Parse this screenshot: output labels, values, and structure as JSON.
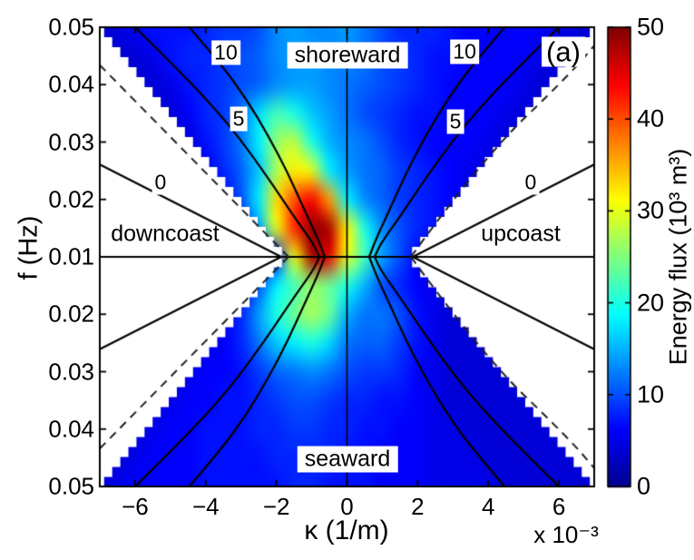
{
  "panel_label": "(a)",
  "axes": {
    "x": {
      "label": "κ (1/m)",
      "multiplier": "x 10⁻³",
      "ticks": [
        {
          "label": "−6",
          "k": -6
        },
        {
          "label": "−4",
          "k": -4
        },
        {
          "label": "−2",
          "k": -2
        },
        {
          "label": "0",
          "k": 0
        },
        {
          "label": "2",
          "k": 2
        },
        {
          "label": "4",
          "k": 4
        },
        {
          "label": "6",
          "k": 6
        }
      ],
      "range": [
        -7,
        7
      ]
    },
    "y": {
      "label": "f (Hz)",
      "ticks": [
        {
          "label": "0.05",
          "f": 0.05
        },
        {
          "label": "0.04",
          "f": 0.04
        },
        {
          "label": "0.03",
          "f": 0.03
        },
        {
          "label": "0.02",
          "f": 0.02
        },
        {
          "label": "0.01",
          "f": 0.01
        },
        {
          "label": "0.02",
          "f": -0.02
        },
        {
          "label": "0.03",
          "f": -0.03
        },
        {
          "label": "0.04",
          "f": -0.04
        },
        {
          "label": "0.05",
          "f": -0.05
        }
      ],
      "range_each_half": [
        0.01,
        0.05
      ]
    }
  },
  "colorbar": {
    "label": "Energy flux (10³ m³)",
    "ticks": [
      {
        "label": "0",
        "v": 0
      },
      {
        "label": "10",
        "v": 10
      },
      {
        "label": "20",
        "v": 20
      },
      {
        "label": "30",
        "v": 30
      },
      {
        "label": "40",
        "v": 40
      },
      {
        "label": "50",
        "v": 50
      }
    ],
    "range": [
      0,
      50
    ],
    "colormap": "jet",
    "colormap_anchors": [
      [
        0,
        "#00008F"
      ],
      [
        0.125,
        "#0000FF"
      ],
      [
        0.375,
        "#00FFFF"
      ],
      [
        0.625,
        "#FFFF00"
      ],
      [
        0.875,
        "#FF0000"
      ],
      [
        1,
        "#800000"
      ]
    ]
  },
  "annotations": {
    "shoreward": "shoreward",
    "seaward": "seaward",
    "downcoast": "downcoast",
    "upcoast": "upcoast"
  },
  "chart_data": {
    "type": "heatmap",
    "title": "",
    "xlabel": "κ (1/m) x 10⁻³",
    "ylabel": "f (Hz)",
    "value_label": "Energy flux (10³ m³)",
    "value_range": [
      0,
      50
    ],
    "x_columns_1e3": [
      -7,
      -6.5,
      -6,
      -5.5,
      -5,
      -4.5,
      -4,
      -3.5,
      -3,
      -2.5,
      -2,
      -1.5,
      -1,
      -0.5,
      0,
      0.5,
      1,
      1.5,
      2,
      2.5,
      3,
      3.5,
      4,
      4.5,
      5,
      5.5,
      6,
      6.5,
      7
    ],
    "row_f_hz": [
      0.05,
      0.045,
      0.04,
      0.035,
      0.03,
      0.025,
      0.02,
      0.015,
      0.01,
      -0.015,
      -0.02,
      -0.025,
      -0.03,
      -0.035,
      -0.04,
      -0.045,
      -0.05
    ],
    "grid": [
      [
        4,
        4,
        6,
        7,
        7,
        7,
        8,
        9,
        9,
        10,
        13,
        14,
        13,
        13,
        14,
        12,
        10,
        8,
        8,
        8,
        7,
        6,
        6,
        6,
        6,
        6,
        5,
        4,
        4
      ],
      [
        4,
        4,
        4,
        5,
        7,
        8,
        8,
        9,
        10,
        11,
        13,
        14,
        14,
        13,
        13,
        12,
        10,
        9,
        8,
        7,
        7,
        6,
        6,
        6,
        6,
        5,
        4,
        4,
        4
      ],
      [
        4,
        4,
        4,
        4,
        5,
        7,
        8,
        9,
        10,
        11,
        13,
        14,
        14,
        13,
        12,
        11,
        10,
        9,
        8,
        7,
        6,
        6,
        6,
        6,
        5,
        4,
        4,
        4,
        4
      ],
      [
        4,
        4,
        4,
        4,
        4,
        6,
        8,
        9,
        12,
        17,
        22,
        20,
        16,
        14,
        12,
        10,
        9,
        8,
        7,
        7,
        6,
        6,
        6,
        5,
        4,
        4,
        4,
        4,
        4
      ],
      [
        4,
        4,
        4,
        4,
        4,
        4,
        7,
        9,
        12,
        18,
        26,
        28,
        20,
        15,
        13,
        12,
        10,
        8,
        7,
        6,
        6,
        6,
        5,
        4,
        4,
        4,
        4,
        4,
        4
      ],
      [
        4,
        4,
        4,
        4,
        4,
        4,
        5,
        8,
        11,
        16,
        27,
        32,
        30,
        18,
        14,
        12,
        11,
        9,
        8,
        7,
        6,
        5,
        5,
        4,
        4,
        4,
        4,
        4,
        4
      ],
      [
        4,
        4,
        4,
        4,
        4,
        4,
        4,
        6,
        10,
        18,
        33,
        40,
        44,
        36,
        18,
        13,
        11,
        9,
        8,
        7,
        6,
        5,
        4,
        4,
        4,
        4,
        4,
        4,
        4
      ],
      [
        4,
        4,
        4,
        4,
        4,
        4,
        4,
        4,
        6,
        14,
        30,
        42,
        49,
        48,
        32,
        20,
        13,
        10,
        8,
        7,
        6,
        5,
        4,
        4,
        4,
        4,
        4,
        4,
        4
      ],
      [
        4,
        4,
        4,
        4,
        4,
        4,
        4,
        4,
        4,
        4,
        8,
        30,
        48,
        45,
        30,
        22,
        14,
        10,
        6,
        4,
        4,
        4,
        4,
        4,
        4,
        4,
        4,
        4,
        4
      ],
      [
        4,
        4,
        4,
        4,
        4,
        4,
        4,
        4,
        5,
        10,
        18,
        22,
        26,
        24,
        20,
        15,
        10,
        8,
        6,
        5,
        4,
        4,
        4,
        4,
        4,
        4,
        4,
        4,
        4
      ],
      [
        4,
        4,
        4,
        4,
        4,
        4,
        4,
        5,
        8,
        14,
        20,
        24,
        27,
        24,
        15,
        12,
        12,
        10,
        7,
        5,
        4,
        4,
        4,
        4,
        4,
        4,
        4,
        4,
        4
      ],
      [
        4,
        4,
        4,
        4,
        4,
        4,
        5,
        6,
        8,
        12,
        16,
        18,
        20,
        17,
        12,
        11,
        11,
        9,
        7,
        5,
        4,
        4,
        4,
        4,
        4,
        4,
        4,
        4,
        4
      ],
      [
        4,
        4,
        4,
        4,
        4,
        5,
        6,
        6,
        7,
        9,
        11,
        12,
        13,
        12,
        10,
        9,
        9,
        8,
        6,
        5,
        4,
        4,
        4,
        4,
        4,
        4,
        4,
        4,
        4
      ],
      [
        4,
        4,
        4,
        4,
        5,
        6,
        6,
        7,
        7,
        8,
        9,
        10,
        10,
        9,
        8,
        8,
        7,
        7,
        6,
        5,
        4,
        4,
        4,
        4,
        4,
        4,
        4,
        4,
        4
      ],
      [
        4,
        4,
        4,
        5,
        6,
        6,
        7,
        7,
        7,
        8,
        8,
        9,
        9,
        8,
        8,
        7,
        7,
        6,
        6,
        5,
        5,
        4,
        4,
        4,
        4,
        4,
        4,
        4,
        4
      ],
      [
        4,
        4,
        5,
        6,
        6,
        6,
        7,
        7,
        7,
        7,
        8,
        8,
        8,
        8,
        7,
        7,
        6,
        6,
        6,
        5,
        5,
        5,
        4,
        4,
        4,
        4,
        4,
        4,
        4
      ],
      [
        4,
        5,
        6,
        6,
        6,
        6,
        7,
        7,
        7,
        7,
        7,
        8,
        8,
        7,
        7,
        7,
        6,
        6,
        6,
        5,
        5,
        5,
        5,
        4,
        4,
        4,
        4,
        4,
        4
      ]
    ],
    "mask_wedges": {
      "apex_k_1e3": 1.73,
      "edge_k_1e3": 6.97,
      "edge_f_hz": 0.0498,
      "style": "white-staircase"
    },
    "contour_lines": [
      {
        "label": "0",
        "points": [
          [
            -7.0,
            0.0261
          ],
          [
            -1.862,
            0.01
          ]
        ]
      },
      {
        "label": "5",
        "points": [
          [
            -6.05,
            0.0503
          ],
          [
            -4.56,
            0.0413
          ],
          [
            -3.275,
            0.0326
          ],
          [
            -2.248,
            0.0239
          ],
          [
            -1.477,
            0.0168
          ],
          [
            -0.963,
            0.0124
          ],
          [
            -0.783,
            0.01
          ]
        ]
      },
      {
        "label": "10",
        "points": [
          [
            -4.508,
            0.0503
          ],
          [
            -3.583,
            0.0437
          ],
          [
            -2.838,
            0.0374
          ],
          [
            -2.222,
            0.031
          ],
          [
            -1.683,
            0.0247
          ],
          [
            -1.22,
            0.0184
          ],
          [
            -0.835,
            0.0133
          ],
          [
            -0.629,
            0.01
          ]
        ]
      }
    ],
    "dashed_lines": {
      "left": [
        [
          -7.0,
          0.0434
        ],
        [
          -1.657,
          0.01
        ]
      ],
      "right": [
        [
          1.811,
          0.01
        ],
        [
          3.789,
          0.0268
        ],
        [
          6.307,
          0.0418
        ],
        [
          7.0,
          0.0468
        ]
      ]
    },
    "contour_labels": [
      {
        "text": "10",
        "k": -3.43,
        "f": 0.0456
      },
      {
        "text": "5",
        "k": -3.07,
        "f": 0.034
      },
      {
        "text": "0",
        "k": -5.28,
        "f": 0.023
      },
      {
        "text": "10",
        "k": 3.33,
        "f": 0.0457
      },
      {
        "text": "5",
        "k": 3.07,
        "f": 0.0335
      },
      {
        "text": "0",
        "k": 5.2,
        "f": 0.023
      }
    ],
    "legend_position": "right-colorbar",
    "grid_on": false
  }
}
